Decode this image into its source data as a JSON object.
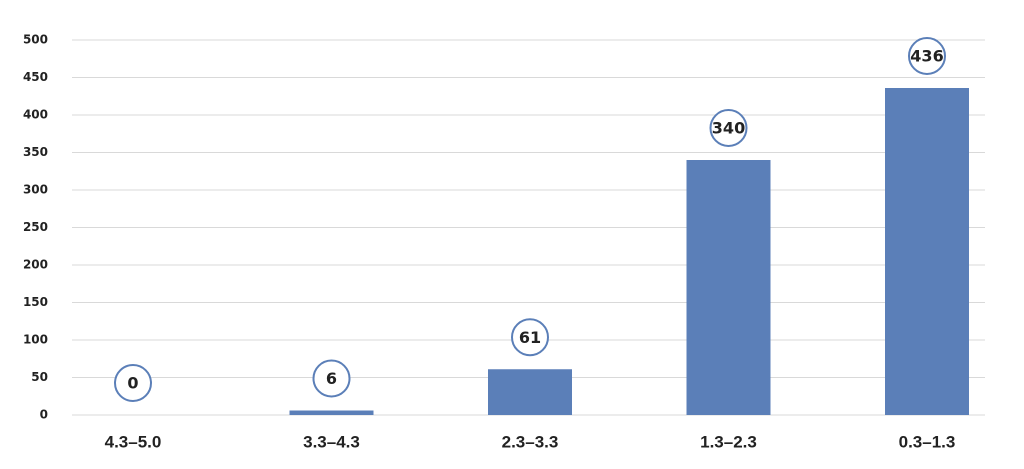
{
  "chart_data": {
    "type": "bar",
    "categories": [
      "4.3–5.0",
      "3.3–4.3",
      "2.3–3.3",
      "1.3–2.3",
      "0.3–1.3"
    ],
    "values": [
      0,
      6,
      61,
      340,
      436
    ],
    "color": "#5b7fb8",
    "ylim": [
      0,
      500
    ],
    "yticks": [
      0,
      50,
      100,
      150,
      200,
      250,
      300,
      350,
      400,
      450,
      500
    ],
    "grid": true
  }
}
